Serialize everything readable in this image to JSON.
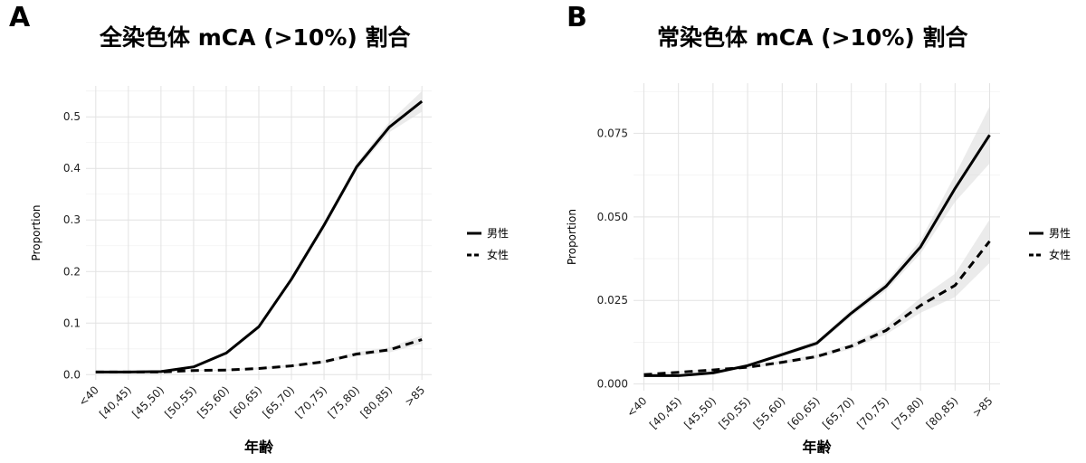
{
  "chart_data": [
    {
      "type": "line",
      "panel": "A",
      "title": "全染色体  mCA (>10%) 割合",
      "xlabel": "年齢",
      "ylabel": "Proportion",
      "categories": [
        "<40",
        "[40,45)",
        "[45,50)",
        "[50,55)",
        "[55,60)",
        "[60,65)",
        "[65,70)",
        "[70,75)",
        "[75,80)",
        "[80,85)",
        ">85"
      ],
      "ylim": [
        -0.01,
        0.56
      ],
      "yticks": [
        0.0,
        0.1,
        0.2,
        0.3,
        0.4,
        0.5
      ],
      "ytick_labels": [
        "0.0",
        "0.1",
        "0.2",
        "0.3",
        "0.4",
        "0.5"
      ],
      "grid": true,
      "legend_position": "right",
      "series": [
        {
          "name": "男性",
          "style": "solid",
          "values": [
            0.005,
            0.005,
            0.006,
            0.015,
            0.042,
            0.093,
            0.185,
            0.29,
            0.403,
            0.48,
            0.53
          ],
          "ci_halfwidth": [
            0.001,
            0.001,
            0.001,
            0.002,
            0.003,
            0.004,
            0.005,
            0.006,
            0.007,
            0.01,
            0.02
          ]
        },
        {
          "name": "女性",
          "style": "dashed",
          "values": [
            0.005,
            0.005,
            0.005,
            0.008,
            0.009,
            0.012,
            0.017,
            0.025,
            0.04,
            0.048,
            0.068
          ],
          "ci_halfwidth": [
            0.001,
            0.001,
            0.001,
            0.001,
            0.001,
            0.002,
            0.002,
            0.003,
            0.004,
            0.005,
            0.008
          ]
        }
      ]
    },
    {
      "type": "line",
      "panel": "B",
      "title": "常染色体  mCA (>10%) 割合",
      "xlabel": "年齢",
      "ylabel": "Proportion",
      "categories": [
        "<40",
        "[40,45)",
        "[45,50)",
        "[50,55)",
        "[55,60)",
        "[60,65)",
        "[65,70)",
        "[70,75)",
        "[75,80)",
        "[80,85)",
        ">85"
      ],
      "ylim": [
        -0.002,
        0.09
      ],
      "yticks": [
        0.0,
        0.025,
        0.05,
        0.075
      ],
      "ytick_labels": [
        "0.000",
        "0.025",
        "0.050",
        "0.075"
      ],
      "grid": true,
      "legend_position": "right",
      "series": [
        {
          "name": "男性",
          "style": "solid",
          "values": [
            0.0025,
            0.0025,
            0.0033,
            0.0055,
            0.0088,
            0.0122,
            0.0212,
            0.0292,
            0.041,
            0.0585,
            0.0745
          ],
          "ci_halfwidth": [
            0.0002,
            0.0002,
            0.0003,
            0.0004,
            0.0006,
            0.0008,
            0.001,
            0.0013,
            0.002,
            0.004,
            0.0085
          ]
        },
        {
          "name": "女性",
          "style": "dashed",
          "values": [
            0.0028,
            0.0035,
            0.0042,
            0.005,
            0.0065,
            0.0082,
            0.0113,
            0.016,
            0.0235,
            0.0295,
            0.0427
          ],
          "ci_halfwidth": [
            0.0002,
            0.0002,
            0.0003,
            0.0004,
            0.0005,
            0.0006,
            0.0008,
            0.0012,
            0.0022,
            0.0035,
            0.0065
          ]
        }
      ]
    }
  ]
}
